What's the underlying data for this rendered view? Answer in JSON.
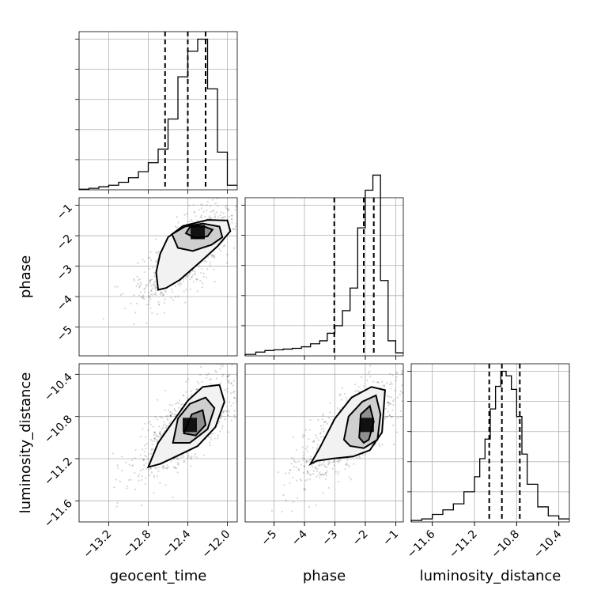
{
  "chart_data": {
    "type": "corner",
    "parameters": [
      {
        "name": "geocent_time",
        "label": "geocent_time",
        "range": [
          -13.5,
          -11.9
        ],
        "ticks": [
          -13.2,
          -12.8,
          -12.4,
          -12.0
        ],
        "tick_labels": [
          "−13.2",
          "−12.8",
          "−12.4",
          "−12.0"
        ],
        "quantiles": [
          -12.63,
          -12.4,
          -12.22
        ]
      },
      {
        "name": "phase",
        "label": "phase",
        "range": [
          -5.95,
          -0.75
        ],
        "ticks": [
          -5,
          -4,
          -3,
          -2,
          -1
        ],
        "tick_labels": [
          "−5",
          "−4",
          "−3",
          "−2",
          "−1"
        ],
        "quantiles": [
          -3.02,
          -2.05,
          -1.72
        ]
      },
      {
        "name": "luminosity_distance",
        "label": "luminosity_distance",
        "range": [
          -11.8,
          -10.3
        ],
        "ticks": [
          -11.6,
          -11.2,
          -10.8,
          -10.4
        ],
        "tick_labels": [
          "−11.6",
          "−11.2",
          "−10.8",
          "−10.4"
        ],
        "quantiles": [
          -11.06,
          -10.94,
          -10.77
        ]
      }
    ],
    "histograms": [
      {
        "param": "geocent_time",
        "bin_edges": [
          -13.5,
          -13.4,
          -13.3,
          -13.2,
          -13.1,
          -13.0,
          -12.9,
          -12.8,
          -12.7,
          -12.6,
          -12.5,
          -12.4,
          -12.3,
          -12.2,
          -12.1,
          -12.0,
          -11.9
        ],
        "counts": [
          0.004,
          0.01,
          0.02,
          0.03,
          0.05,
          0.08,
          0.12,
          0.18,
          0.27,
          0.47,
          0.75,
          0.92,
          1.0,
          0.67,
          0.25,
          0.03
        ]
      },
      {
        "param": "phase",
        "bin_edges": [
          -5.95,
          -5.6,
          -5.3,
          -5.0,
          -4.7,
          -4.4,
          -4.1,
          -3.8,
          -3.5,
          -3.25,
          -3.0,
          -2.75,
          -2.5,
          -2.25,
          -2.0,
          -1.75,
          -1.5,
          -1.25,
          -1.0,
          -0.75
        ],
        "counts": [
          0.01,
          0.025,
          0.035,
          0.04,
          0.045,
          0.05,
          0.06,
          0.08,
          0.1,
          0.15,
          0.2,
          0.3,
          0.45,
          0.85,
          1.1,
          1.2,
          0.5,
          0.1,
          0.02
        ]
      },
      {
        "param": "luminosity_distance",
        "bin_edges": [
          -11.8,
          -11.7,
          -11.6,
          -11.5,
          -11.4,
          -11.3,
          -11.2,
          -11.15,
          -11.1,
          -11.05,
          -11.0,
          -10.95,
          -10.9,
          -10.85,
          -10.8,
          -10.75,
          -10.7,
          -10.6,
          -10.5,
          -10.4,
          -10.3
        ],
        "counts": [
          0.01,
          0.02,
          0.05,
          0.08,
          0.12,
          0.2,
          0.3,
          0.42,
          0.55,
          0.75,
          0.9,
          1.0,
          0.97,
          0.88,
          0.7,
          0.45,
          0.25,
          0.1,
          0.04,
          0.02
        ]
      }
    ],
    "contour_panels": [
      {
        "x": "geocent_time",
        "y": "phase",
        "contours": [
          [
            [
              -12.7,
              -3.78
            ],
            [
              -12.72,
              -3.2
            ],
            [
              -12.68,
              -2.6
            ],
            [
              -12.6,
              -2.05
            ],
            [
              -12.45,
              -1.68
            ],
            [
              -12.2,
              -1.48
            ],
            [
              -12.0,
              -1.5
            ],
            [
              -11.97,
              -1.85
            ],
            [
              -12.1,
              -2.35
            ],
            [
              -12.27,
              -2.85
            ],
            [
              -12.48,
              -3.45
            ],
            [
              -12.62,
              -3.72
            ]
          ],
          [
            [
              -12.5,
              -2.4
            ],
            [
              -12.56,
              -1.95
            ],
            [
              -12.43,
              -1.7
            ],
            [
              -12.25,
              -1.6
            ],
            [
              -12.08,
              -1.7
            ],
            [
              -12.05,
              -2.05
            ],
            [
              -12.16,
              -2.3
            ],
            [
              -12.35,
              -2.5
            ]
          ],
          [
            [
              -12.42,
              -1.92
            ],
            [
              -12.38,
              -1.72
            ],
            [
              -12.25,
              -1.68
            ],
            [
              -12.15,
              -1.8
            ],
            [
              -12.2,
              -2.02
            ],
            [
              -12.32,
              -2.08
            ]
          ]
        ],
        "peak": [
          -12.3,
          -1.88
        ]
      },
      {
        "x": "geocent_time",
        "y": "luminosity_distance",
        "contours": [
          [
            [
              -12.8,
              -11.28
            ],
            [
              -12.7,
              -11.05
            ],
            [
              -12.55,
              -10.85
            ],
            [
              -12.4,
              -10.65
            ],
            [
              -12.25,
              -10.52
            ],
            [
              -12.08,
              -10.5
            ],
            [
              -12.03,
              -10.66
            ],
            [
              -12.12,
              -10.9
            ],
            [
              -12.3,
              -11.08
            ],
            [
              -12.52,
              -11.18
            ],
            [
              -12.68,
              -11.25
            ]
          ],
          [
            [
              -12.55,
              -11.05
            ],
            [
              -12.5,
              -10.82
            ],
            [
              -12.38,
              -10.68
            ],
            [
              -12.22,
              -10.62
            ],
            [
              -12.13,
              -10.72
            ],
            [
              -12.2,
              -10.92
            ],
            [
              -12.38,
              -11.05
            ]
          ],
          [
            [
              -12.44,
              -10.96
            ],
            [
              -12.36,
              -10.78
            ],
            [
              -12.25,
              -10.74
            ],
            [
              -12.22,
              -10.88
            ],
            [
              -12.32,
              -10.98
            ]
          ]
        ],
        "peak": [
          -12.38,
          -10.88
        ]
      },
      {
        "x": "phase",
        "y": "luminosity_distance",
        "contours": [
          [
            [
              -3.8,
              -11.25
            ],
            [
              -3.5,
              -11.1
            ],
            [
              -3.0,
              -10.82
            ],
            [
              -2.45,
              -10.62
            ],
            [
              -1.8,
              -10.52
            ],
            [
              -1.35,
              -10.55
            ],
            [
              -1.45,
              -10.95
            ],
            [
              -1.85,
              -11.12
            ],
            [
              -2.4,
              -11.18
            ],
            [
              -3.1,
              -11.2
            ],
            [
              -3.6,
              -11.22
            ]
          ],
          [
            [
              -2.7,
              -11.02
            ],
            [
              -2.55,
              -10.8
            ],
            [
              -2.1,
              -10.66
            ],
            [
              -1.65,
              -10.6
            ],
            [
              -1.5,
              -10.78
            ],
            [
              -1.6,
              -11.02
            ],
            [
              -2.05,
              -11.1
            ],
            [
              -2.5,
              -11.08
            ]
          ],
          [
            [
              -2.2,
              -11.0
            ],
            [
              -2.15,
              -10.78
            ],
            [
              -1.85,
              -10.7
            ],
            [
              -1.72,
              -10.85
            ],
            [
              -1.88,
              -11.02
            ],
            [
              -2.05,
              -11.05
            ]
          ]
        ],
        "peak": [
          -1.95,
          -10.88
        ]
      }
    ]
  }
}
